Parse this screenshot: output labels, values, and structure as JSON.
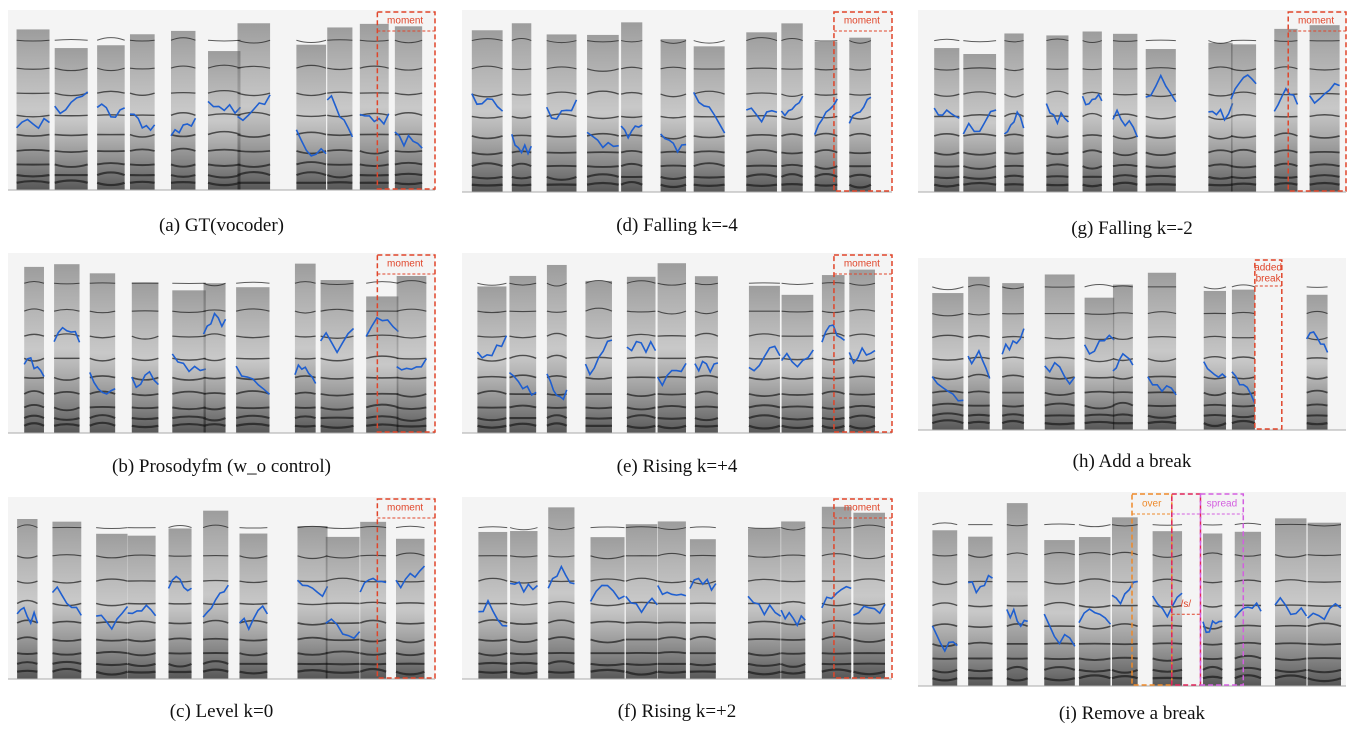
{
  "panels": [
    {
      "caption": "(a) GT(vocoder)",
      "annotations": [
        "moment"
      ]
    },
    {
      "caption": "(b) Prosodyfm (w_o control)",
      "annotations": [
        "moment"
      ]
    },
    {
      "caption": "(c) Level k=0",
      "annotations": [
        "moment"
      ]
    },
    {
      "caption": "(d) Falling k=-4",
      "annotations": [
        "moment"
      ]
    },
    {
      "caption": "(e) Rising k=+4",
      "annotations": [
        "moment"
      ]
    },
    {
      "caption": "(f) Rising k=+2",
      "annotations": [
        "moment"
      ]
    },
    {
      "caption": "(g) Falling k=-2",
      "annotations": [
        "moment"
      ]
    },
    {
      "caption": "(h) Add a break",
      "annotations": [
        "added",
        "break"
      ]
    },
    {
      "caption": "(i) Remove a break",
      "annotations": [
        "over",
        "spread",
        "/s/"
      ]
    }
  ]
}
